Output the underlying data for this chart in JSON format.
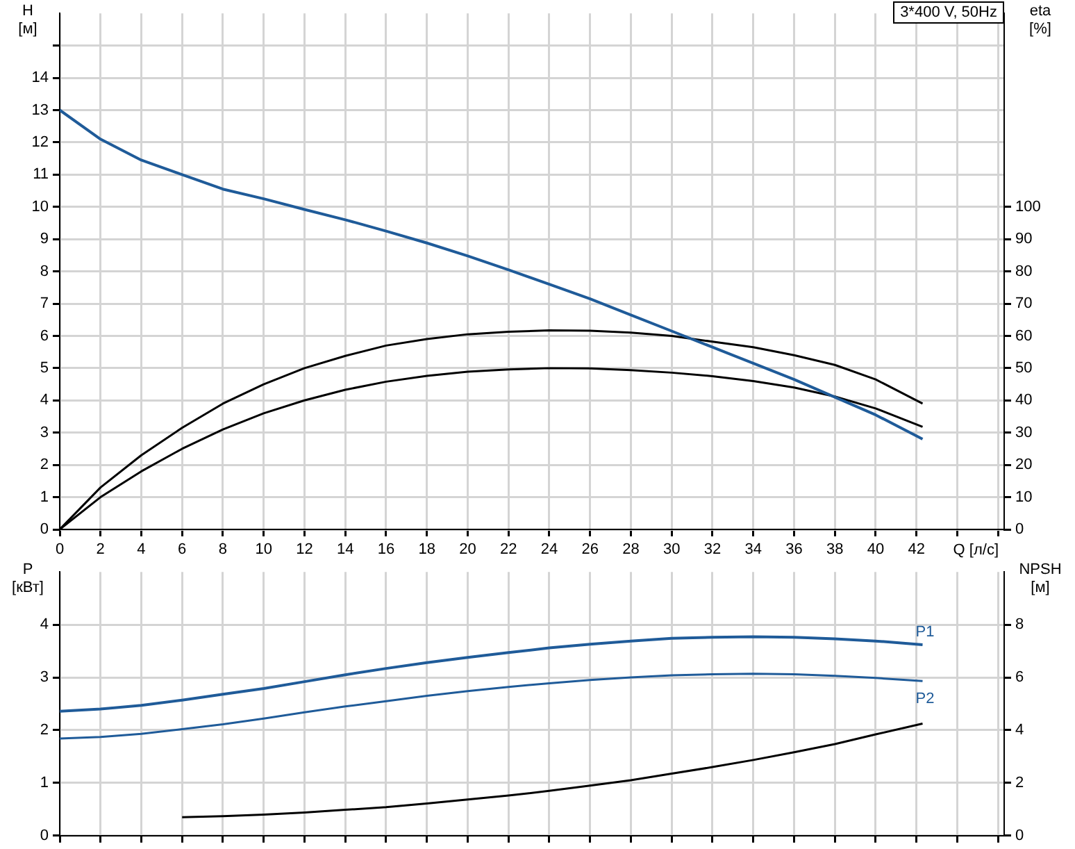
{
  "chart_data": [
    {
      "type": "line",
      "title": "3*400 V, 50Hz",
      "xlabel": "Q [л/с]",
      "ylabel": "H [м]",
      "y2label": "eta [%]",
      "grid": true,
      "legend": false,
      "marker": "none",
      "line_style": "solid",
      "x": [
        0,
        2,
        4,
        6,
        8,
        10,
        12,
        14,
        16,
        18,
        20,
        22,
        24,
        26,
        28,
        30,
        32,
        34,
        36,
        38,
        40,
        42.3
      ],
      "xlim": [
        0,
        46.3
      ],
      "xticks": [
        0,
        2,
        4,
        6,
        8,
        10,
        12,
        14,
        16,
        18,
        20,
        22,
        24,
        26,
        28,
        30,
        32,
        34,
        36,
        38,
        40,
        42,
        {
          "value": 44,
          "label": null
        },
        {
          "value": 46,
          "label": null
        }
      ],
      "ylim": [
        0,
        16
      ],
      "yticks": [
        0,
        1,
        2,
        3,
        4,
        5,
        6,
        7,
        8,
        9,
        10,
        11,
        12,
        13,
        14,
        {
          "value": 15,
          "label": null
        }
      ],
      "y2lim": [
        0,
        160
      ],
      "y2ticks": [
        0,
        10,
        20,
        30,
        40,
        50,
        60,
        70,
        80,
        90,
        100
      ],
      "series": [
        {
          "color": "#1f5b99",
          "values": [
            13,
            12.1,
            11.45,
            11.0,
            10.55,
            10.25,
            9.92,
            9.6,
            9.25,
            8.88,
            8.48,
            8.05,
            7.6,
            7.15,
            6.65,
            6.15,
            5.65,
            5.15,
            4.65,
            4.1,
            3.55,
            2.8
          ]
        },
        {
          "color": "#000000",
          "axis": "y2",
          "values": [
            0,
            13,
            23,
            31.5,
            39,
            45,
            50,
            53.8,
            57,
            59,
            60.5,
            61.3,
            61.7,
            61.6,
            61,
            60,
            58.2,
            56.5,
            54,
            51,
            46.5,
            39
          ]
        },
        {
          "color": "#000000",
          "axis": "y2",
          "values": [
            0,
            10,
            18,
            25,
            31,
            36,
            40,
            43.3,
            45.8,
            47.6,
            48.9,
            49.6,
            50,
            49.9,
            49.4,
            48.6,
            47.5,
            46,
            44,
            41.2,
            37.5,
            31.8
          ]
        }
      ]
    },
    {
      "type": "line",
      "ylabel": "P [кВт]",
      "y2label": "NPSH [м]",
      "grid": true,
      "legend": false,
      "marker": "none",
      "line_style": "solid",
      "tick_labels": "y",
      "x": [
        0,
        2,
        4,
        6,
        8,
        10,
        12,
        14,
        16,
        18,
        20,
        22,
        24,
        26,
        28,
        30,
        32,
        34,
        36,
        38,
        40,
        42.3
      ],
      "xlim": [
        0,
        46.3
      ],
      "xticks": [
        0,
        2,
        4,
        6,
        8,
        10,
        12,
        14,
        16,
        18,
        20,
        22,
        24,
        26,
        28,
        30,
        32,
        34,
        36,
        38,
        40,
        42,
        44,
        46
      ],
      "ylim": [
        0,
        5
      ],
      "yticks": [
        0,
        1,
        2,
        3,
        4
      ],
      "y2lim": [
        0,
        10
      ],
      "y2ticks": [
        0,
        2,
        4,
        6,
        8
      ],
      "series": [
        {
          "name": "P1",
          "color": "#1f5b99",
          "values": [
            2.36,
            2.4,
            2.47,
            2.57,
            2.68,
            2.79,
            2.92,
            3.05,
            3.17,
            3.28,
            3.38,
            3.47,
            3.56,
            3.63,
            3.69,
            3.74,
            3.76,
            3.77,
            3.76,
            3.73,
            3.69,
            3.62
          ]
        },
        {
          "name": "P2",
          "color": "#1f5b99",
          "values": [
            1.84,
            1.87,
            1.93,
            2.02,
            2.11,
            2.22,
            2.34,
            2.45,
            2.55,
            2.65,
            2.74,
            2.82,
            2.89,
            2.95,
            3.0,
            3.04,
            3.06,
            3.07,
            3.06,
            3.03,
            2.99,
            2.93
          ]
        },
        {
          "color": "#000000",
          "axis": "y2",
          "x": [
            6,
            8,
            10,
            12,
            14,
            16,
            18,
            20,
            22,
            24,
            26,
            28,
            30,
            32,
            34,
            36,
            38,
            40,
            42.3
          ],
          "values": [
            0.7,
            0.74,
            0.8,
            0.88,
            0.98,
            1.08,
            1.22,
            1.37,
            1.52,
            1.7,
            1.9,
            2.1,
            2.35,
            2.6,
            2.87,
            3.16,
            3.47,
            3.84,
            4.25
          ]
        }
      ]
    }
  ]
}
